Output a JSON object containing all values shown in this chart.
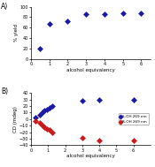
{
  "panel_A": {
    "title": "A)",
    "xlabel": "alcohol equivalency",
    "ylabel": "% yield",
    "xlim": [
      0,
      6.5
    ],
    "ylim": [
      0,
      100
    ],
    "xticks": [
      0,
      1,
      2,
      3,
      4,
      5,
      6
    ],
    "yticks": [
      0,
      20,
      40,
      60,
      80,
      100
    ],
    "x": [
      0.5,
      1.0,
      2.0,
      3.0,
      4.0,
      5.0,
      6.0
    ],
    "y": [
      20,
      68,
      73,
      85,
      86,
      87,
      88
    ],
    "color": "#1a1aaa",
    "marker": "D",
    "markersize": 3.5
  },
  "panel_B": {
    "title": "B)",
    "xlabel": "alcohol equivalency",
    "ylabel": "CD (mdeg)",
    "xlim": [
      0,
      7
    ],
    "ylim": [
      -40,
      40
    ],
    "xticks": [
      0,
      1,
      2,
      3,
      4,
      5,
      6
    ],
    "yticks": [
      -40,
      -30,
      -20,
      -10,
      0,
      10,
      20,
      30,
      40
    ],
    "blue_x": [
      0.25,
      0.5,
      0.65,
      0.8,
      0.95,
      1.1,
      1.25,
      3.0,
      4.0,
      6.0
    ],
    "blue_y": [
      3,
      6,
      10,
      13,
      15,
      17,
      20,
      28,
      30,
      30
    ],
    "red_x": [
      0.25,
      0.5,
      0.65,
      0.8,
      0.95,
      1.1,
      1.25,
      3.0,
      4.0,
      6.0
    ],
    "red_y": [
      -3,
      -6,
      -10,
      -13,
      -15,
      -17,
      -20,
      -28,
      -33,
      -32
    ],
    "blue_color": "#1a1aaa",
    "red_color": "#cc1a1a",
    "marker": "D",
    "markersize": 3.5,
    "legend_blue": "S-OH 269 nm",
    "legend_red": "R-OH 269 nm"
  }
}
